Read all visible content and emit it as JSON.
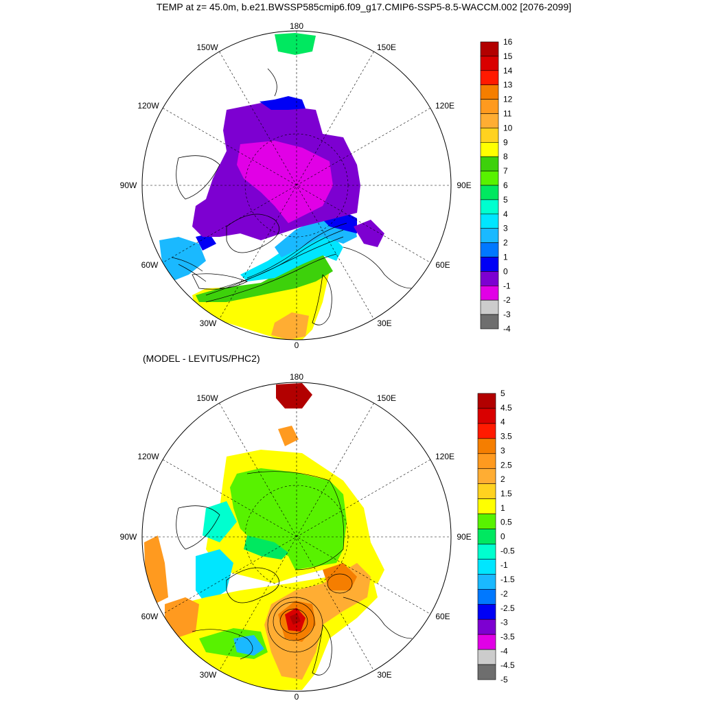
{
  "title": "TEMP at z=  45.0m, b.e21.BWSSP585cmip6.f09_g17.CMIP6-SSP5-8.5-WACCM.002 [2076-2099]",
  "subtitle": "(MODEL - LEVITUS/PHC2)",
  "longitude_labels": {
    "lon_180": "180",
    "lon_150w": "150W",
    "lon_150e": "150E",
    "lon_120w": "120W",
    "lon_120e": "120E",
    "lon_90w": "90W",
    "lon_90e": "90E",
    "lon_60w": "60W",
    "lon_60e": "60E",
    "lon_30w": "30W",
    "lon_30e": "30E",
    "lon_0": "0"
  },
  "colorbar_top": {
    "labels": [
      "16",
      "15",
      "14",
      "13",
      "12",
      "11",
      "10",
      "9",
      "8",
      "7",
      "6",
      "5",
      "4",
      "3",
      "2",
      "1",
      "0",
      "-1",
      "-2",
      "-3",
      "-4"
    ],
    "colors": [
      "#b20000",
      "#d90000",
      "#ff1a00",
      "#f57e00",
      "#ff9a1f",
      "#ffad33",
      "#ffd21f",
      "#ffff00",
      "#3dd10b",
      "#58f200",
      "#00e860",
      "#00ffcf",
      "#00e6ff",
      "#1ab9ff",
      "#0078ff",
      "#0000f5",
      "#7d00d1",
      "#e100e6",
      "#cccccc",
      "#6e6e6e"
    ]
  },
  "colorbar_bottom": {
    "labels": [
      "5",
      "4.5",
      "4",
      "3.5",
      "3",
      "2.5",
      "2",
      "1.5",
      "1",
      "0.5",
      "0",
      "-0.5",
      "-1",
      "-1.5",
      "-2",
      "-2.5",
      "-3",
      "-3.5",
      "-4",
      "-4.5",
      "-5"
    ],
    "colors": [
      "#b20000",
      "#d90000",
      "#ff1a00",
      "#f57e00",
      "#ff9a1f",
      "#ffad33",
      "#ffd21f",
      "#ffff00",
      "#58f200",
      "#00e860",
      "#00ffcf",
      "#00e6ff",
      "#1ab9ff",
      "#0078ff",
      "#0000f5",
      "#7d00d1",
      "#e100e6",
      "#cccccc",
      "#6e6e6e"
    ]
  }
}
